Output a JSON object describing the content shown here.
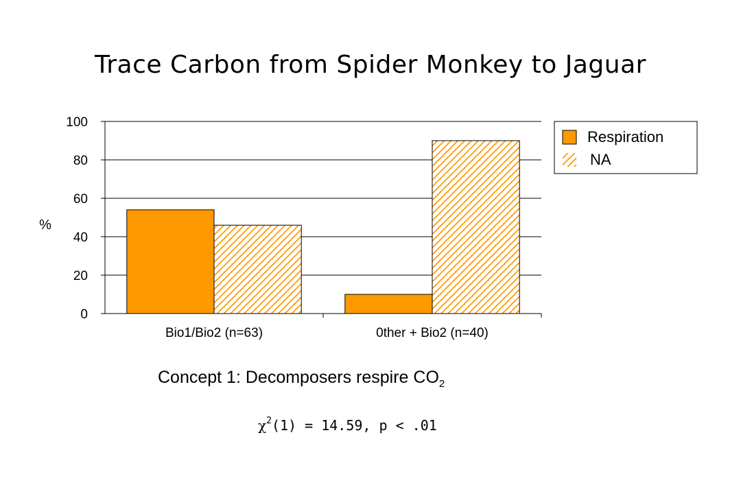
{
  "title": "Trace Carbon from Spider Monkey to Jaguar",
  "caption": {
    "text": "Concept 1: Decomposers respire CO",
    "subscript": "2"
  },
  "statistic": {
    "symbol": "χ",
    "superscript": "2",
    "rest": "(1) = 14.59, p < .01"
  },
  "chart_data": {
    "type": "bar",
    "categories": [
      "Bio1/Bio2 (n=63)",
      "0ther + Bio2  (n=40)"
    ],
    "series": [
      {
        "name": "Respiration",
        "values": [
          54,
          10
        ],
        "color": "#ff9900",
        "pattern": "solid"
      },
      {
        "name": "NA",
        "values": [
          46,
          90
        ],
        "color": "#ff9900",
        "pattern": "diagonal-hatch"
      }
    ],
    "ylabel": "%",
    "yticks": [
      "0",
      "20",
      "40",
      "60",
      "80",
      "100"
    ],
    "ylim": [
      0,
      100
    ],
    "grid": true,
    "legend": "top-right"
  }
}
